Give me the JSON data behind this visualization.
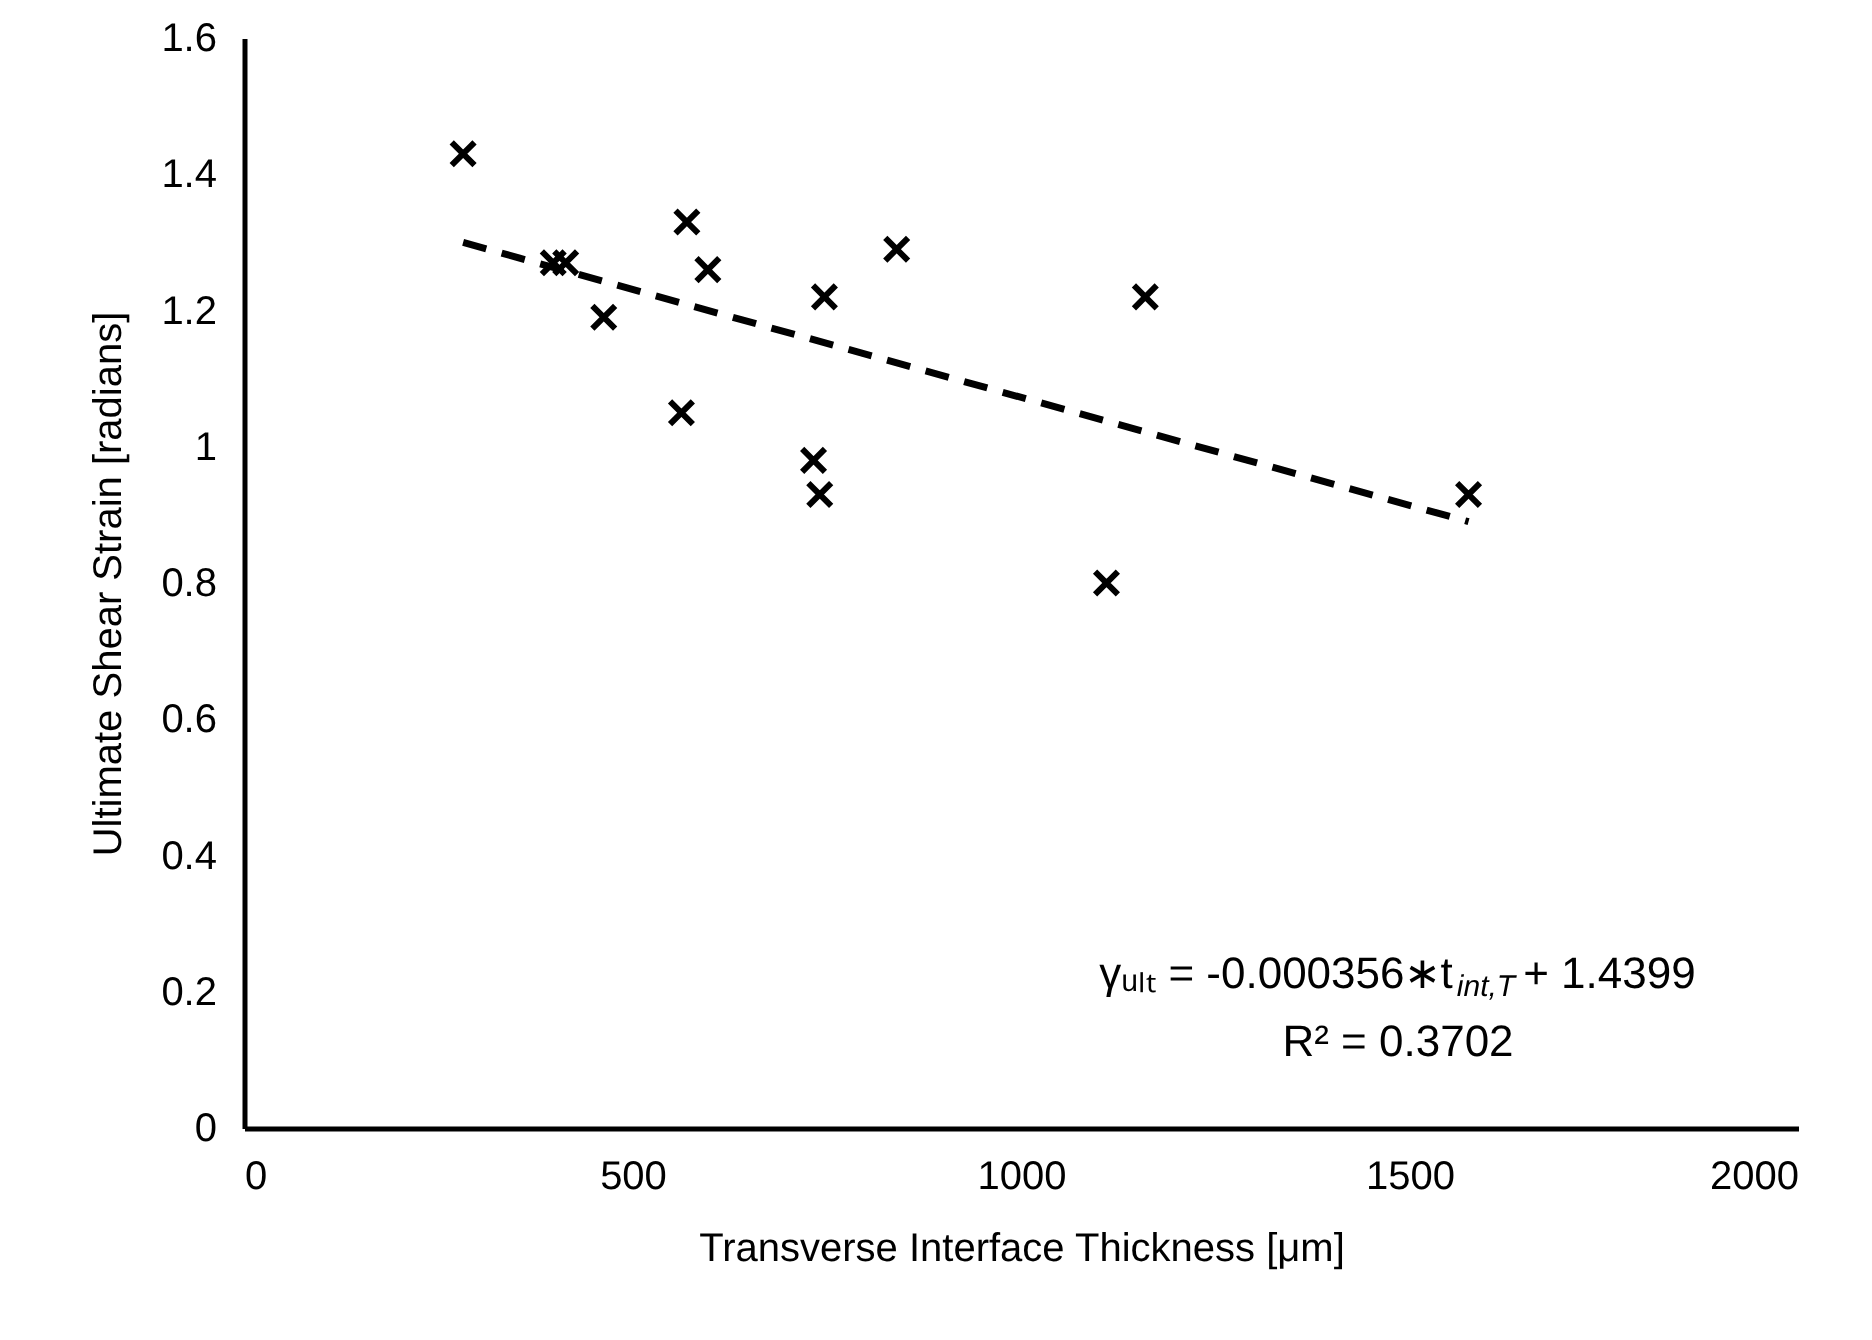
{
  "chart_data": {
    "type": "scatter",
    "xlabel": "Transverse Interface Thickness [μm]",
    "ylabel": "Ultimate Shear Strain [radians]",
    "xlim": [
      0,
      2000
    ],
    "xticks": [
      0,
      500,
      1000,
      1500,
      2000
    ],
    "ylim": [
      0,
      1.6
    ],
    "yticks": [
      0,
      {
        "value": 0.2,
        "label": "0.2"
      },
      {
        "value": 0.4,
        "label": "0.4"
      },
      {
        "value": 0.6,
        "label": "0.6"
      },
      {
        "value": 0.8,
        "label": "0.8"
      },
      1,
      {
        "value": 1.2,
        "label": "1.2"
      },
      {
        "value": 1.4,
        "label": "1.4"
      },
      {
        "value": 1.6,
        "label": "1.6"
      }
    ],
    "grid": false,
    "marker": "cross",
    "series": [
      {
        "type": "scatter",
        "color": "#000000",
        "x": [
          282,
          398,
          414,
          463,
          570,
          597,
          563,
          747,
          840,
          733,
          741,
          1160,
          1110,
          1576
        ],
        "values": [
          1.43,
          1.27,
          1.27,
          1.19,
          1.33,
          1.26,
          1.05,
          1.22,
          1.29,
          0.98,
          0.93,
          1.22,
          0.8,
          0.93
        ]
      },
      {
        "type": "line",
        "color": "#000000",
        "line_style": "dashed",
        "marker": "none",
        "x": [
          282,
          1576
        ],
        "values": [
          1.3,
          0.89
        ]
      }
    ],
    "annotations": [
      "γᵤₗₜ = -0.000356∗t$_{int,T}$ + 1.4399",
      "R² = 0.3702"
    ]
  }
}
